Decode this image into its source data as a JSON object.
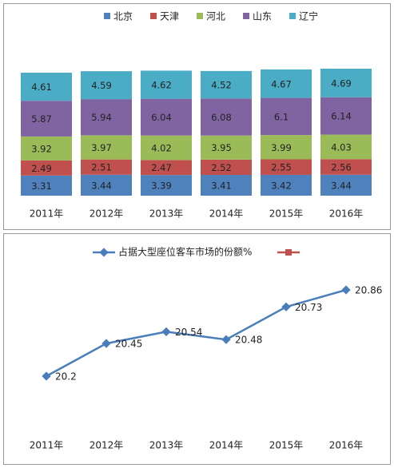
{
  "chart_data": [
    {
      "type": "stacked_bar",
      "categories": [
        "2011年",
        "2012年",
        "2013年",
        "2014年",
        "2015年",
        "2016年"
      ],
      "series": [
        {
          "name": "北京",
          "color": "#4f81bd",
          "values": [
            3.31,
            3.44,
            3.39,
            3.41,
            3.42,
            3.44
          ]
        },
        {
          "name": "天津",
          "color": "#c0504d",
          "values": [
            2.49,
            2.51,
            2.47,
            2.52,
            2.55,
            2.56
          ]
        },
        {
          "name": "河北",
          "color": "#9bbb59",
          "values": [
            3.92,
            3.97,
            4.02,
            3.95,
            3.99,
            4.03
          ]
        },
        {
          "name": "山东",
          "color": "#8064a2",
          "values": [
            5.87,
            5.94,
            6.04,
            6.08,
            6.1,
            6.14
          ]
        },
        {
          "name": "辽宁",
          "color": "#4bacc6",
          "values": [
            4.61,
            4.59,
            4.62,
            4.52,
            4.67,
            4.69
          ]
        }
      ]
    },
    {
      "type": "line",
      "categories": [
        "2011年",
        "2012年",
        "2013年",
        "2014年",
        "2015年",
        "2016年"
      ],
      "series": [
        {
          "name": "占据大型座位客车市场的份额%",
          "color": "#4a7ebb",
          "values": [
            20.2,
            20.45,
            20.54,
            20.48,
            20.73,
            20.86
          ]
        }
      ]
    }
  ]
}
